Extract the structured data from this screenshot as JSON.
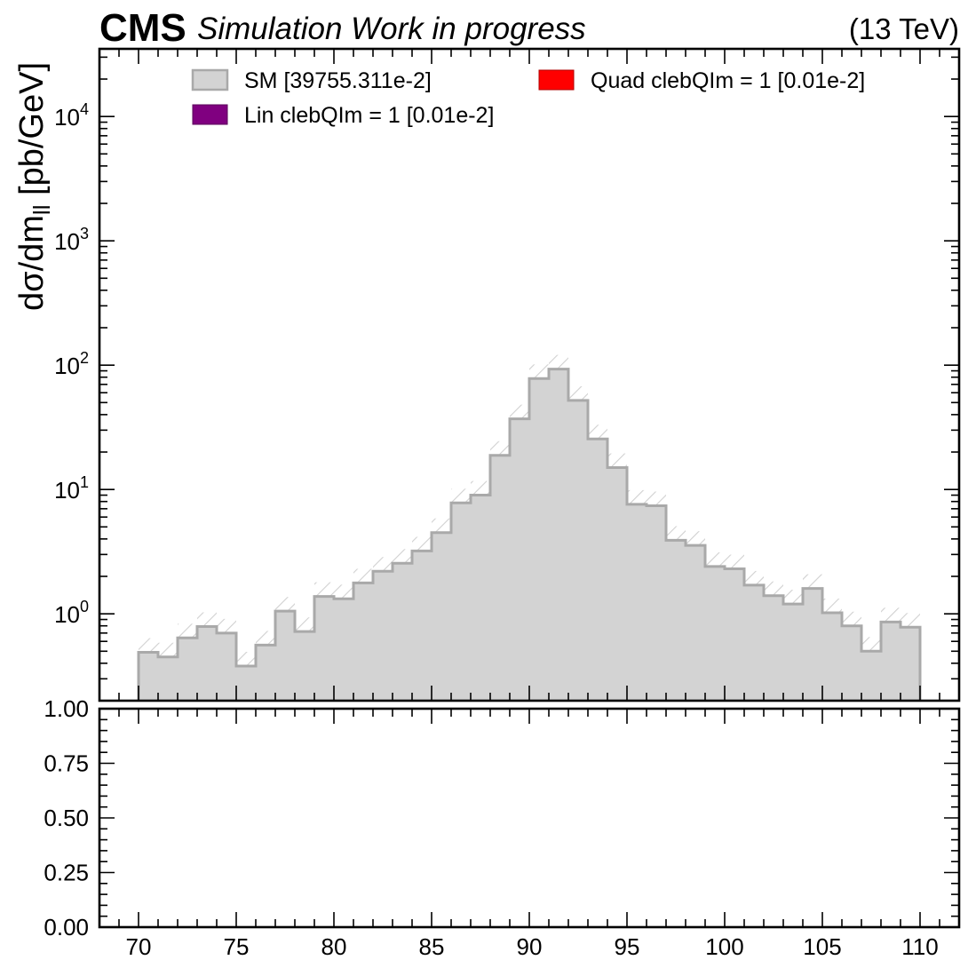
{
  "header": {
    "experiment": "CMS",
    "extra_text": "Simulation Work in progress",
    "energy": "(13 TeV)"
  },
  "colors": {
    "sm_fill": "#d3d3d3",
    "sm_edge": "#a9a9a9",
    "lin": "#800080",
    "quad": "#ff0000",
    "axes": "#000000"
  },
  "chart_data": [
    {
      "type": "histogram",
      "panel": "main",
      "ylabel_main": "dσ/dm",
      "ylabel_sub": "ll",
      "ylabel_unit": " [pb/GeV]",
      "yscale": "log",
      "ylim": [
        0.2,
        35000
      ],
      "xlim": [
        68,
        112
      ],
      "grid": false,
      "legend_placement": "top",
      "bin_edges": [
        70,
        71,
        72,
        73,
        74,
        75,
        76,
        77,
        78,
        79,
        80,
        81,
        82,
        83,
        84,
        85,
        86,
        87,
        88,
        89,
        90,
        91,
        92,
        93,
        94,
        95,
        96,
        97,
        98,
        99,
        100,
        101,
        102,
        103,
        104,
        105,
        106,
        107,
        108,
        109,
        110
      ],
      "series": [
        {
          "name": "SM [39755.311e-2]",
          "color": "#d3d3d3",
          "values": [
            0.49,
            0.45,
            0.64,
            0.79,
            0.7,
            0.38,
            0.56,
            1.05,
            0.72,
            1.38,
            1.32,
            1.77,
            2.2,
            2.55,
            3.2,
            4.5,
            7.8,
            9.0,
            18.8,
            37.0,
            78.0,
            93.0,
            52.0,
            25.5,
            15.0,
            7.6,
            7.4,
            3.9,
            3.55,
            2.4,
            2.3,
            1.7,
            1.4,
            1.2,
            1.6,
            1.02,
            0.8,
            0.5,
            0.86,
            0.78
          ]
        },
        {
          "name": "Lin clebQIm = 1 [0.01e-2]",
          "color": "#800080",
          "values": []
        },
        {
          "name": "Quad clebQIm = 1 [0.01e-2]",
          "color": "#ff0000",
          "values": []
        }
      ],
      "yticks": [
        {
          "base": "10",
          "exp": "0",
          "value": 1
        },
        {
          "base": "10",
          "exp": "1",
          "value": 10
        },
        {
          "base": "10",
          "exp": "2",
          "value": 100
        },
        {
          "base": "10",
          "exp": "3",
          "value": 1000
        },
        {
          "base": "10",
          "exp": "4",
          "value": 10000
        }
      ]
    },
    {
      "type": "histogram",
      "panel": "ratio",
      "ylim": [
        0,
        1
      ],
      "xlim": [
        68,
        112
      ],
      "yticks": [
        "0.00",
        "0.25",
        "0.50",
        "0.75",
        "1.00"
      ],
      "xticks": [
        "70",
        "75",
        "80",
        "85",
        "90",
        "95",
        "100",
        "105",
        "110"
      ],
      "series": []
    }
  ]
}
